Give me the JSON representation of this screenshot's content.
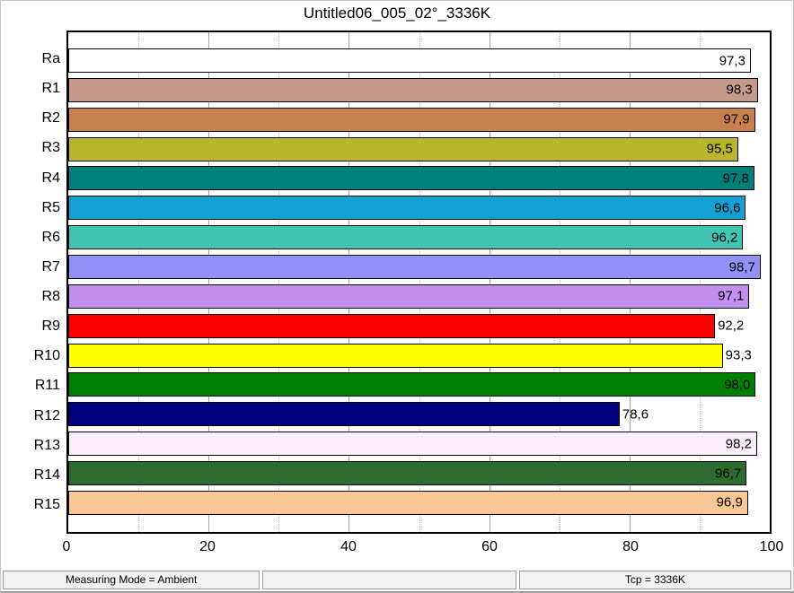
{
  "title": "Untitled06_005_02°_3336K",
  "chart_data": {
    "type": "bar",
    "orientation": "horizontal",
    "title": "Untitled06_005_02°_3336K",
    "xlabel": "",
    "ylabel": "",
    "xlim": [
      0,
      100
    ],
    "x_ticks": [
      0,
      20,
      40,
      60,
      80,
      100
    ],
    "grid": "vertical; solid gray at multiples of 20, dotted gray at odd multiples of 10",
    "legend": "none",
    "categories": [
      "Ra",
      "R1",
      "R2",
      "R3",
      "R4",
      "R5",
      "R6",
      "R7",
      "R8",
      "R9",
      "R10",
      "R11",
      "R12",
      "R13",
      "R14",
      "R15"
    ],
    "values": [
      97.3,
      98.3,
      97.9,
      95.5,
      97.8,
      96.6,
      96.2,
      98.7,
      97.1,
      92.2,
      93.3,
      98.0,
      78.6,
      98.2,
      96.7,
      96.9
    ],
    "value_labels": [
      "97,3",
      "98,3",
      "97,9",
      "95,5",
      "97,8",
      "96,6",
      "96,2",
      "98,7",
      "97,1",
      "92,2",
      "93,3",
      "98,0",
      "78,6",
      "98,2",
      "96,7",
      "96,9"
    ],
    "bar_colors": [
      "#ffffff",
      "#c49a8b",
      "#c8814e",
      "#b9b52c",
      "#00807d",
      "#14a0d2",
      "#42c4b3",
      "#9191f8",
      "#c28ef0",
      "#fd0000",
      "#ffff00",
      "#008000",
      "#000080",
      "#faeefa",
      "#2d6b2e",
      "#f8c795"
    ],
    "bar_border_color": "#000000",
    "value_label_color": "#000000"
  },
  "status_bar": {
    "left": "Measuring Mode = Ambient",
    "middle": "",
    "right": "Tcp = 3336K"
  }
}
